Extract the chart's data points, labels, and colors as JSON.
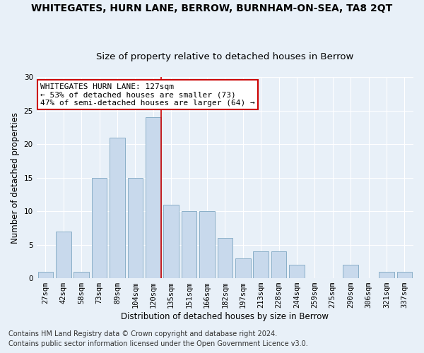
{
  "title": "WHITEGATES, HURN LANE, BERROW, BURNHAM-ON-SEA, TA8 2QT",
  "subtitle": "Size of property relative to detached houses in Berrow",
  "xlabel": "Distribution of detached houses by size in Berrow",
  "ylabel": "Number of detached properties",
  "bar_labels": [
    "27sqm",
    "42sqm",
    "58sqm",
    "73sqm",
    "89sqm",
    "104sqm",
    "120sqm",
    "135sqm",
    "151sqm",
    "166sqm",
    "182sqm",
    "197sqm",
    "213sqm",
    "228sqm",
    "244sqm",
    "259sqm",
    "275sqm",
    "290sqm",
    "306sqm",
    "321sqm",
    "337sqm"
  ],
  "bar_values": [
    1,
    7,
    1,
    15,
    21,
    15,
    24,
    11,
    10,
    10,
    6,
    3,
    4,
    4,
    2,
    0,
    0,
    2,
    0,
    1,
    1
  ],
  "bar_color": "#c8d9ec",
  "bar_edge_color": "#8aafc8",
  "background_color": "#e8f0f8",
  "grid_color": "#ffffff",
  "vline_index": 6,
  "vline_color": "#cc0000",
  "annotation_title": "WHITEGATES HURN LANE: 127sqm",
  "annotation_line2": "← 53% of detached houses are smaller (73)",
  "annotation_line3": "47% of semi-detached houses are larger (64) →",
  "annotation_box_color": "#ffffff",
  "annotation_box_edge_color": "#cc0000",
  "ylim": [
    0,
    30
  ],
  "yticks": [
    0,
    5,
    10,
    15,
    20,
    25,
    30
  ],
  "footer1": "Contains HM Land Registry data © Crown copyright and database right 2024.",
  "footer2": "Contains public sector information licensed under the Open Government Licence v3.0.",
  "title_fontsize": 10,
  "subtitle_fontsize": 9.5,
  "axis_label_fontsize": 8.5,
  "tick_fontsize": 7.5,
  "annotation_fontsize": 8,
  "footer_fontsize": 7
}
